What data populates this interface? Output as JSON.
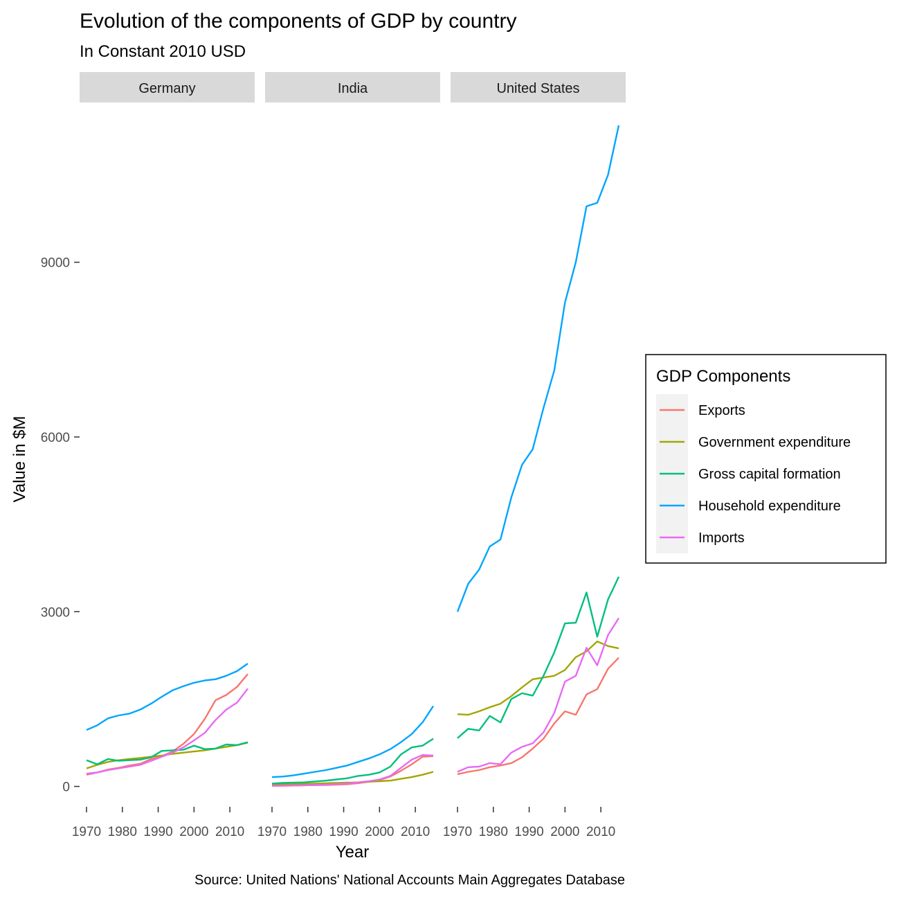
{
  "chart_data": {
    "type": "line",
    "title": "Evolution of the components of GDP by country",
    "subtitle": "In Constant 2010 USD",
    "xlabel": "Year",
    "ylabel": "Value in $M",
    "caption": "Source: United Nations' National Accounts Main Aggregates Database",
    "legend_title": "GDP Components",
    "legend_position": "right",
    "facets": [
      "Germany",
      "India",
      "United States"
    ],
    "x_ticks": [
      1970,
      1980,
      1990,
      2000,
      2010
    ],
    "y_ticks": [
      0,
      3000,
      6000,
      9000
    ],
    "xlim": [
      1970,
      2015
    ],
    "ylim": [
      -350,
      11600
    ],
    "series_names": [
      "Exports",
      "Government expenditure",
      "Gross capital formation",
      "Household expenditure",
      "Imports"
    ],
    "colors": {
      "Exports": "#F8766D",
      "Government expenditure": "#A3A500",
      "Gross capital formation": "#00BF7D",
      "Household expenditure": "#00A5FF",
      "Imports": "#E76BF3"
    },
    "x": [
      1970,
      1973,
      1976,
      1979,
      1982,
      1985,
      1988,
      1991,
      1994,
      1997,
      2000,
      2003,
      2006,
      2009,
      2012,
      2015
    ],
    "panels": [
      {
        "country": "Germany",
        "series": {
          "Exports": [
            200,
            240,
            290,
            320,
            360,
            390,
            470,
            520,
            600,
            730,
            900,
            1160,
            1480,
            1570,
            1710,
            1930
          ],
          "Government expenditure": [
            310,
            370,
            420,
            450,
            470,
            490,
            510,
            530,
            560,
            580,
            600,
            620,
            650,
            680,
            710,
            750
          ],
          "Gross capital formation": [
            450,
            380,
            470,
            440,
            450,
            460,
            500,
            610,
            620,
            630,
            700,
            640,
            650,
            720,
            710,
            760
          ],
          "Household expenditure": [
            970,
            1050,
            1170,
            1220,
            1250,
            1320,
            1420,
            1540,
            1650,
            1720,
            1780,
            1820,
            1840,
            1900,
            1980,
            2110
          ],
          "Imports": [
            220,
            240,
            280,
            310,
            340,
            370,
            440,
            510,
            580,
            670,
            790,
            920,
            1140,
            1320,
            1440,
            1680
          ]
        }
      },
      {
        "country": "India",
        "series": {
          "Exports": [
            10,
            12,
            15,
            20,
            22,
            25,
            30,
            38,
            55,
            80,
            110,
            170,
            270,
            380,
            510,
            520
          ],
          "Government expenditure": [
            30,
            35,
            40,
            45,
            50,
            55,
            60,
            65,
            70,
            80,
            90,
            100,
            130,
            160,
            200,
            250
          ],
          "Gross capital formation": [
            50,
            60,
            65,
            70,
            85,
            100,
            120,
            140,
            180,
            200,
            240,
            340,
            550,
            670,
            700,
            820
          ],
          "Household expenditure": [
            160,
            170,
            190,
            220,
            250,
            280,
            320,
            360,
            420,
            480,
            550,
            640,
            760,
            900,
            1100,
            1380
          ],
          "Imports": [
            10,
            12,
            15,
            20,
            25,
            30,
            40,
            50,
            70,
            90,
            120,
            180,
            320,
            460,
            540,
            530
          ]
        }
      },
      {
        "country": "United States",
        "series": {
          "Exports": [
            210,
            250,
            280,
            330,
            360,
            400,
            500,
            650,
            820,
            1080,
            1290,
            1230,
            1580,
            1670,
            2020,
            2210
          ],
          "Government expenditure": [
            1240,
            1230,
            1290,
            1360,
            1420,
            1550,
            1700,
            1840,
            1870,
            1900,
            2000,
            2220,
            2320,
            2490,
            2410,
            2370
          ],
          "Gross capital formation": [
            830,
            990,
            960,
            1210,
            1100,
            1500,
            1600,
            1560,
            1900,
            2300,
            2800,
            2810,
            3330,
            2570,
            3210,
            3600
          ],
          "Household expenditure": [
            3000,
            3480,
            3720,
            4120,
            4240,
            4960,
            5520,
            5790,
            6500,
            7140,
            8310,
            9000,
            9960,
            10020,
            10500,
            11350
          ],
          "Imports": [
            250,
            330,
            340,
            400,
            380,
            580,
            680,
            740,
            930,
            1260,
            1800,
            1900,
            2380,
            2080,
            2600,
            2890
          ]
        }
      }
    ]
  }
}
